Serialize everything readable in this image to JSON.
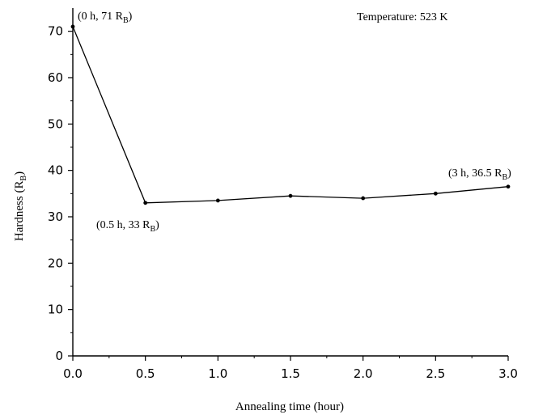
{
  "chart_data": {
    "type": "line",
    "xlabel": "Annealing time (hour)",
    "ylabel": {
      "main": "Hardness (R",
      "sub": "B",
      "close": ")"
    },
    "xlim": [
      0,
      3
    ],
    "ylim": [
      0,
      75
    ],
    "x_ticks": [
      "0.0",
      "0.5",
      "1.0",
      "1.5",
      "2.0",
      "2.5",
      "3.0"
    ],
    "y_ticks": [
      "0",
      "10",
      "20",
      "30",
      "40",
      "50",
      "60",
      "70"
    ],
    "grid": false,
    "series": [
      {
        "x": [
          0,
          0.5,
          1.0,
          1.5,
          2.0,
          2.5,
          3.0
        ],
        "y": [
          71,
          33,
          33.5,
          34.5,
          34,
          35,
          36.5
        ]
      }
    ],
    "annotations": [
      {
        "main": "(0 h, 71 R",
        "sub": "B",
        "close": ")"
      },
      {
        "main": "(0.5 h, 33 R",
        "sub": "B",
        "close": ")"
      },
      {
        "main": "(3 h, 36.5 R",
        "sub": "B",
        "close": ")"
      }
    ],
    "note": "Temperature: 523 K"
  }
}
